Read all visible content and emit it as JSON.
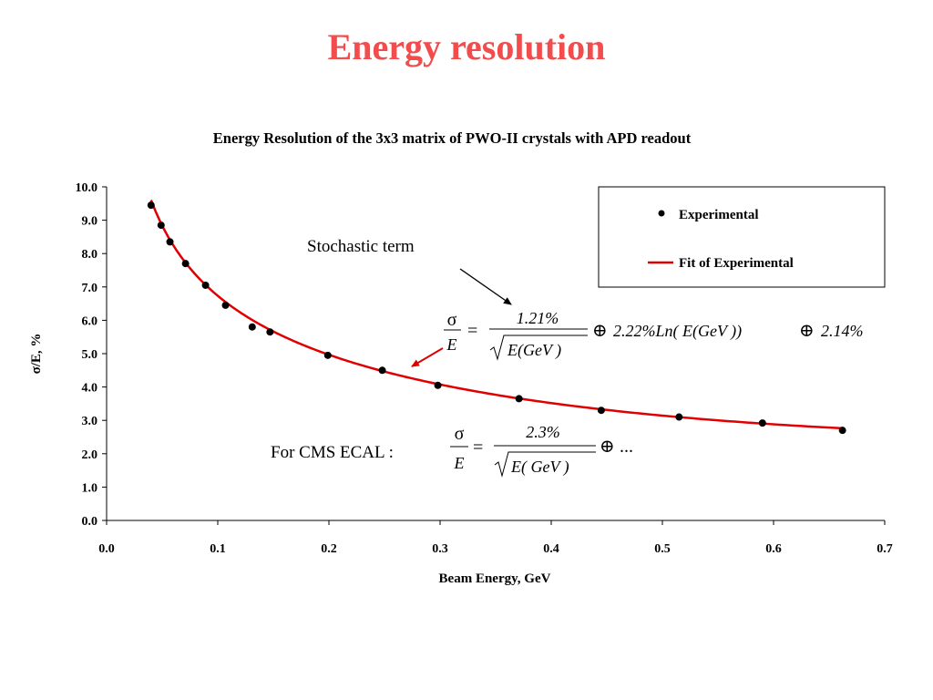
{
  "slide": {
    "title": "Energy resolution"
  },
  "chart_data": {
    "type": "scatter",
    "title": "Energy Resolution of the 3x3 matrix of PWO-II crystals with APD readout",
    "xlabel": "Beam Energy, GeV",
    "ylabel": "σ/E, %",
    "xlim": [
      0.0,
      0.7
    ],
    "ylim": [
      0.0,
      10.0
    ],
    "xticks": [
      "0.0",
      "0.1",
      "0.2",
      "0.3",
      "0.4",
      "0.5",
      "0.6",
      "0.7"
    ],
    "yticks": [
      "0.0",
      "1.0",
      "2.0",
      "3.0",
      "4.0",
      "5.0",
      "6.0",
      "7.0",
      "8.0",
      "9.0",
      "10.0"
    ],
    "grid": false,
    "legend_position": "top-right",
    "series": [
      {
        "name": "Experimental",
        "kind": "points",
        "color": "#000000",
        "x": [
          0.04,
          0.049,
          0.057,
          0.071,
          0.089,
          0.107,
          0.131,
          0.147,
          0.199,
          0.248,
          0.298,
          0.371,
          0.445,
          0.515,
          0.59,
          0.662
        ],
        "y": [
          9.45,
          8.85,
          8.35,
          7.7,
          7.05,
          6.45,
          5.8,
          5.65,
          4.95,
          4.5,
          4.05,
          3.65,
          3.3,
          3.1,
          2.92,
          2.7
        ]
      },
      {
        "name": "Fit of Experimental",
        "kind": "line",
        "color": "#e00000",
        "formula": "sqrt((1.21/sqrt(E))^2 + (2.22*ln(E))^2 + 2.14^2)"
      }
    ],
    "annotations": {
      "stochastic_label": "Stochastic term",
      "fit_formula": {
        "lhs_num": "σ",
        "lhs_den": "E",
        "eq": "=",
        "frac_num": "1.21%",
        "frac_den": "E(GeV )",
        "oplus": "⊕",
        "term2": "2.22%Ln( E(GeV ))",
        "term3": "2.14%"
      },
      "cms_label": "For CMS ECAL :",
      "cms_formula": {
        "lhs_num": "σ",
        "lhs_den": "E",
        "eq": "=",
        "frac_num": "2.3%",
        "frac_den": "E( GeV )",
        "oplus": "⊕",
        "tail": "..."
      }
    }
  }
}
